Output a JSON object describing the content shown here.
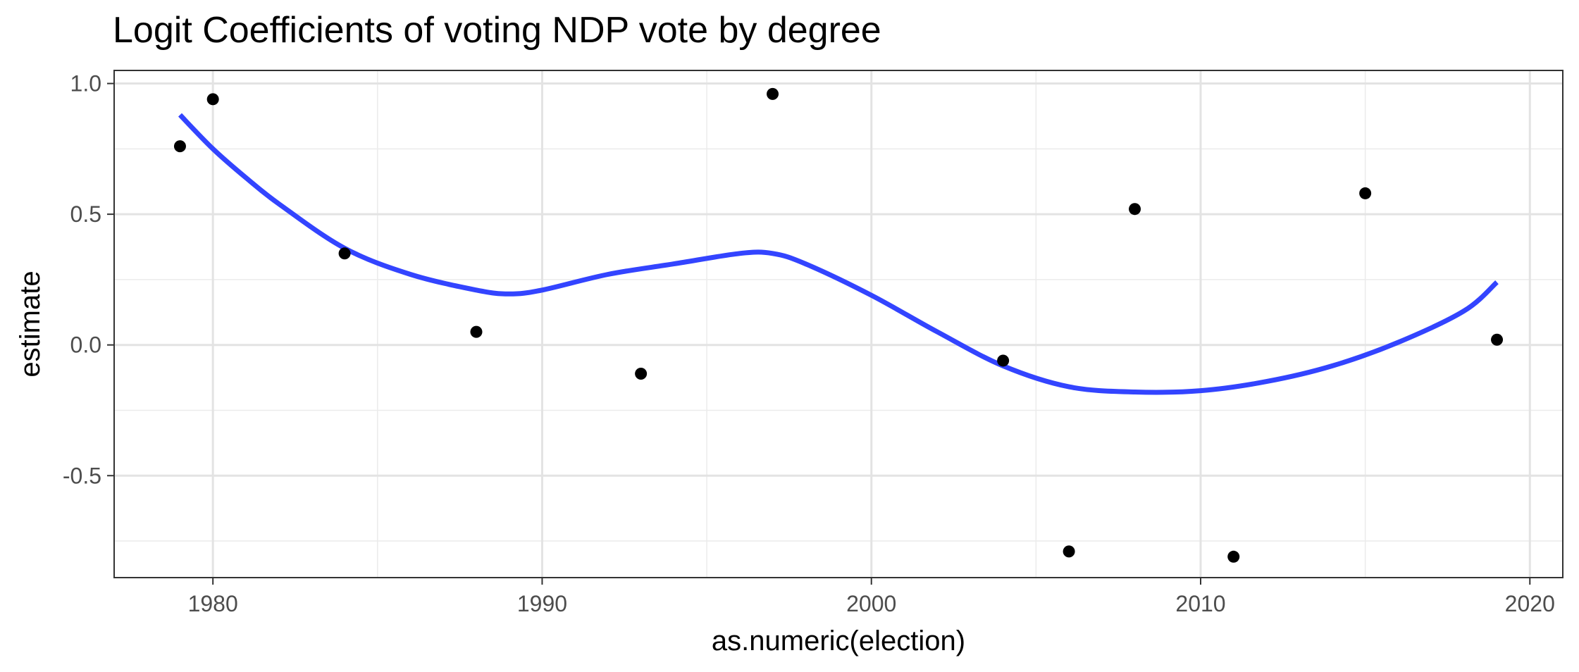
{
  "chart_data": {
    "type": "scatter",
    "title": "Logit Coefficients of voting NDP vote by degree",
    "xlabel": "as.numeric(election)",
    "ylabel": "estimate",
    "xlim": [
      1977,
      2021
    ],
    "ylim": [
      -0.89,
      1.05
    ],
    "x_ticks": [
      1980,
      1990,
      2000,
      2010,
      2020
    ],
    "x_minor_ticks": [
      1985,
      1995,
      2005,
      2015
    ],
    "y_ticks": [
      -0.5,
      0.0,
      0.5,
      1.0
    ],
    "y_tick_labels": [
      "-0.5",
      "0.0",
      "0.5",
      "1.0"
    ],
    "y_minor_ticks": [
      -0.75,
      -0.25,
      0.25,
      0.75
    ],
    "grid": true,
    "points": {
      "x": [
        1979,
        1980,
        1984,
        1988,
        1993,
        1997,
        2004,
        2006,
        2008,
        2011,
        2015,
        2019
      ],
      "y": [
        0.76,
        0.94,
        0.35,
        0.05,
        -0.11,
        0.96,
        -0.06,
        -0.79,
        0.52,
        -0.81,
        0.58,
        0.02
      ],
      "color": "#000000"
    },
    "smooth": {
      "color": "#3344ff",
      "x": [
        1979,
        1980,
        1981,
        1982,
        1984,
        1986,
        1988,
        1989,
        1990,
        1992,
        1994,
        1996,
        1997,
        1998,
        2000,
        2002,
        2004,
        2006,
        2008,
        2010,
        2012,
        2014,
        2016,
        2018,
        2019
      ],
      "y": [
        0.88,
        0.75,
        0.64,
        0.54,
        0.37,
        0.27,
        0.21,
        0.195,
        0.21,
        0.27,
        0.31,
        0.35,
        0.35,
        0.31,
        0.19,
        0.05,
        -0.08,
        -0.16,
        -0.18,
        -0.175,
        -0.14,
        -0.08,
        0.01,
        0.13,
        0.24
      ]
    }
  }
}
